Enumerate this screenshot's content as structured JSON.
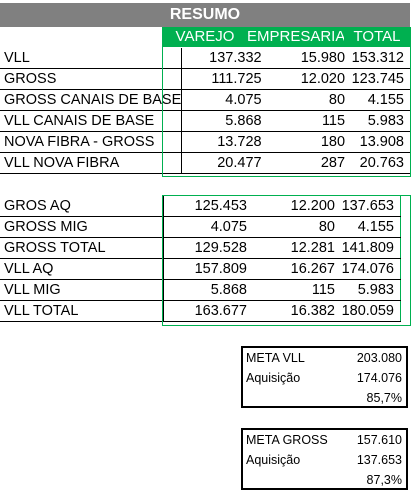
{
  "title": "RESUMO",
  "headers": [
    "VAREJO",
    "EMPRESARIAL",
    "TOTAL"
  ],
  "table1": [
    {
      "label": "VLL",
      "varejo": "137.332",
      "empresarial": "15.980",
      "total": "153.312"
    },
    {
      "label": "GROSS",
      "varejo": "111.725",
      "empresarial": "12.020",
      "total": "123.745"
    },
    {
      "label": "GROSS CANAIS DE BASE",
      "varejo": "4.075",
      "empresarial": "80",
      "total": "4.155"
    },
    {
      "label": "VLL CANAIS DE BASE",
      "varejo": "5.868",
      "empresarial": "115",
      "total": "5.983"
    },
    {
      "label": "NOVA FIBRA - GROSS",
      "varejo": "13.728",
      "empresarial": "180",
      "total": "13.908"
    },
    {
      "label": "VLL NOVA FIBRA",
      "varejo": "20.477",
      "empresarial": "287",
      "total": "20.763"
    }
  ],
  "table2": [
    {
      "label": "GROS AQ",
      "varejo": "125.453",
      "empresarial": "12.200",
      "total": "137.653"
    },
    {
      "label": "GROSS MIG",
      "varejo": "4.075",
      "empresarial": "80",
      "total": "4.155"
    },
    {
      "label": "GROSS TOTAL",
      "varejo": "129.528",
      "empresarial": "12.281",
      "total": "141.809"
    },
    {
      "label": "VLL AQ",
      "varejo": "157.809",
      "empresarial": "16.267",
      "total": "174.076"
    },
    {
      "label": "VLL MIG",
      "varejo": "5.868",
      "empresarial": "115",
      "total": "5.983"
    },
    {
      "label": "VLL TOTAL",
      "varejo": "163.677",
      "empresarial": "16.382",
      "total": "180.059"
    }
  ],
  "meta_vll": {
    "label": "META VLL",
    "value": "203.080",
    "aq_label": "Aquisição",
    "aq_value": "174.076",
    "pct": "85,7%"
  },
  "meta_gross": {
    "label": "META GROSS",
    "value": "157.610",
    "aq_label": "Aquisição",
    "aq_value": "137.653",
    "pct": "87,3%"
  },
  "colors": {
    "header_green": "#00b050",
    "title_gray": "#808080"
  }
}
